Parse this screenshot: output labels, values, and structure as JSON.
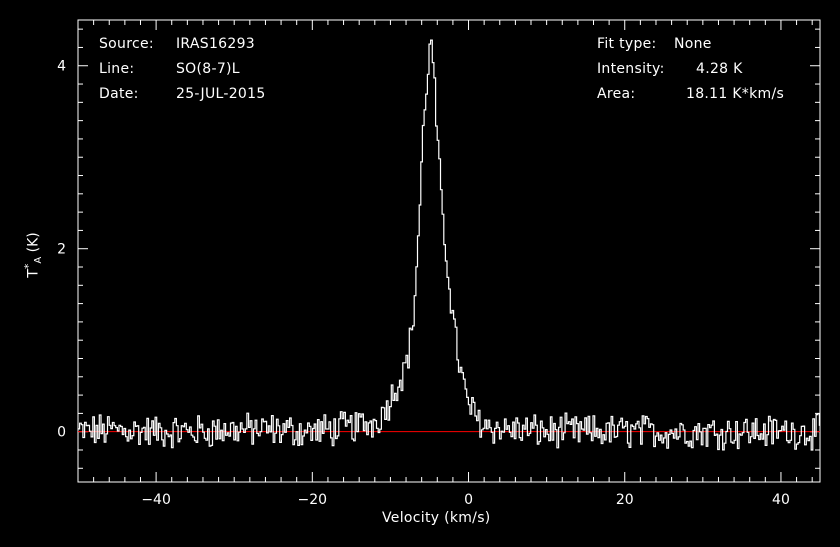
{
  "header_left": {
    "source_label": "Source:",
    "source_value": "IRAS16293",
    "line_label": "Line:",
    "line_value": "SO(8-7)L",
    "date_label": "Date:",
    "date_value": "25-JUL-2015"
  },
  "header_right": {
    "fit_label": "Fit type:",
    "fit_value": "None",
    "intensity_label": "Intensity:",
    "intensity_value": "4.28 K",
    "area_label": "Area:",
    "area_value": "18.11 K*km/s"
  },
  "colors": {
    "background": "#000000",
    "axes": "#ffffff",
    "spectrum": "#ffffff",
    "baseline": "#ff0000"
  },
  "chart_data": {
    "type": "line",
    "xlabel": "Velocity (km/s)",
    "ylabel": "T",
    "ylabel_sup": "*",
    "ylabel_sub": "A",
    "ylabel_units": "(K)",
    "xlim": [
      -50,
      45
    ],
    "ylim": [
      -0.55,
      4.5
    ],
    "xticks": [
      -40,
      -20,
      0,
      20,
      40
    ],
    "yticks": [
      0,
      2,
      4
    ],
    "grid": false,
    "baseline": 0,
    "series": [
      {
        "style": "histogram",
        "peak": {
          "x": -4.8,
          "y": 4.28
        },
        "x": [
          -50,
          -45,
          -40,
          -35,
          -30,
          -25,
          -20,
          -15,
          -12,
          -11,
          -10,
          -9,
          -8,
          -7.5,
          -7,
          -6.5,
          -6,
          -5.5,
          -5,
          -4.8,
          -4.5,
          -4,
          -3.5,
          -3,
          -2.5,
          -2,
          -1.5,
          -1,
          -0.5,
          0,
          1,
          2,
          4,
          6,
          10,
          15,
          20,
          25,
          30,
          35,
          40,
          45
        ],
        "y": [
          0,
          0.02,
          0,
          0,
          0.02,
          0.02,
          0,
          0.05,
          0.1,
          0.2,
          0.35,
          0.55,
          0.72,
          0.95,
          1.3,
          2.0,
          2.9,
          3.7,
          4.1,
          4.28,
          4.0,
          3.2,
          2.55,
          2.05,
          1.7,
          1.25,
          0.95,
          0.65,
          0.45,
          0.3,
          0.15,
          0.08,
          0.03,
          0.02,
          0,
          0,
          0,
          0,
          0,
          0,
          0,
          0
        ]
      }
    ]
  }
}
